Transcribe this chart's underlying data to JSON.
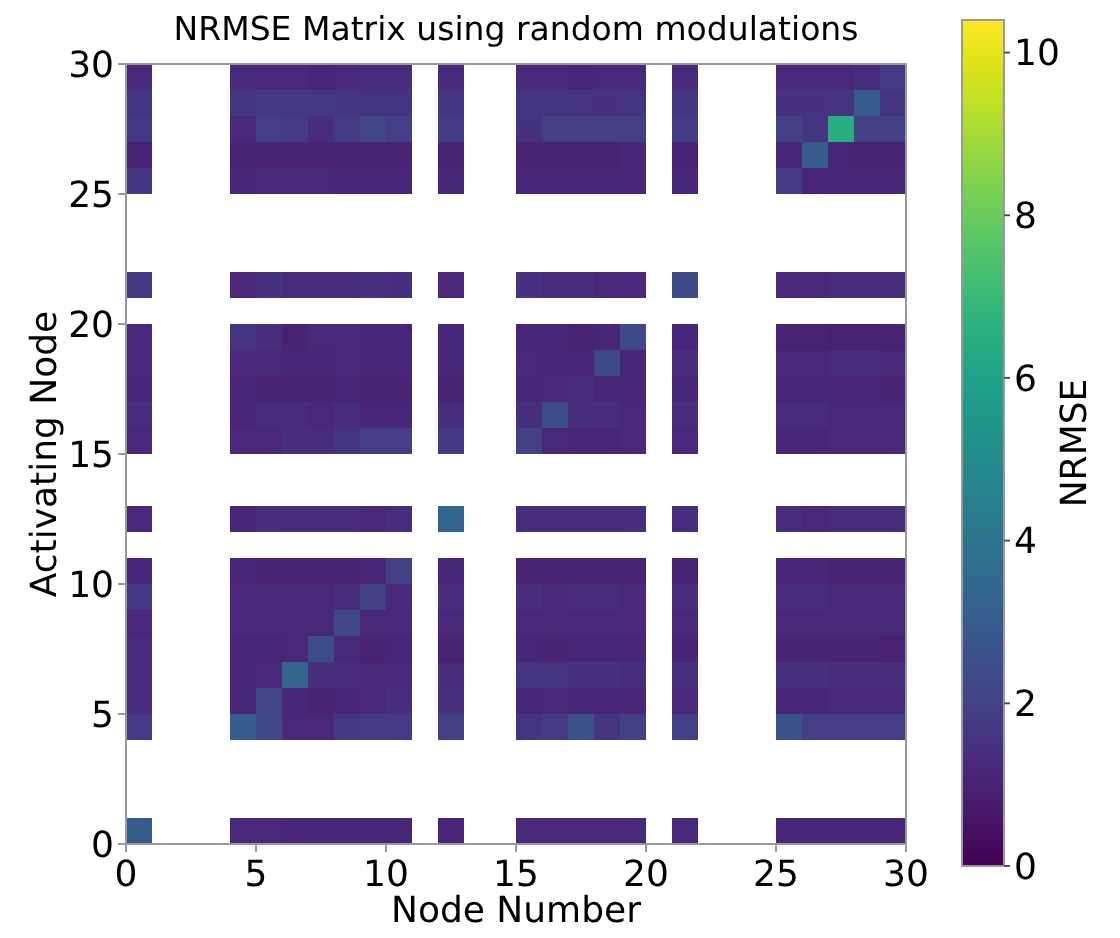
{
  "chart_data": {
    "type": "scatter",
    "marker": "square",
    "title": "NRMSE Matrix using random modulations",
    "xlabel": "Node Number",
    "ylabel": "Activating Node",
    "clabel": "NRMSE",
    "xlim": [
      0,
      30
    ],
    "xticks": [
      0,
      5,
      10,
      15,
      20,
      25,
      30
    ],
    "ylim": [
      0,
      30
    ],
    "yticks": [
      0,
      5,
      10,
      15,
      20,
      25,
      30
    ],
    "clim": [
      0,
      10.4
    ],
    "cticks": [
      0,
      2,
      4,
      6,
      8,
      10
    ],
    "x": [
      0.5,
      4.5,
      5.5,
      6.5,
      7.5,
      8.5,
      9.5,
      10.5,
      12.5,
      15.5,
      16.5,
      17.5,
      18.5,
      19.5,
      21.5,
      25.5,
      26.5,
      27.5,
      28.5,
      29.5,
      0.5,
      4.5,
      5.5,
      6.5,
      7.5,
      8.5,
      9.5,
      10.5,
      12.5,
      15.5,
      16.5,
      17.5,
      18.5,
      19.5,
      21.5,
      25.5,
      26.5,
      27.5,
      28.5,
      29.5,
      0.5,
      4.5,
      5.5,
      6.5,
      7.5,
      8.5,
      9.5,
      10.5,
      12.5,
      15.5,
      16.5,
      17.5,
      18.5,
      19.5,
      21.5,
      25.5,
      26.5,
      27.5,
      28.5,
      29.5,
      0.5,
      4.5,
      5.5,
      6.5,
      7.5,
      8.5,
      9.5,
      10.5,
      12.5,
      15.5,
      16.5,
      17.5,
      18.5,
      19.5,
      21.5,
      25.5,
      26.5,
      27.5,
      28.5,
      29.5,
      0.5,
      4.5,
      5.5,
      6.5,
      7.5,
      8.5,
      9.5,
      10.5,
      12.5,
      15.5,
      16.5,
      17.5,
      18.5,
      19.5,
      21.5,
      25.5,
      26.5,
      27.5,
      28.5,
      29.5,
      0.5,
      4.5,
      5.5,
      6.5,
      7.5,
      8.5,
      9.5,
      10.5,
      12.5,
      15.5,
      16.5,
      17.5,
      18.5,
      19.5,
      21.5,
      25.5,
      26.5,
      27.5,
      28.5,
      29.5,
      0.5,
      4.5,
      5.5,
      6.5,
      7.5,
      8.5,
      9.5,
      10.5,
      12.5,
      15.5,
      16.5,
      17.5,
      18.5,
      19.5,
      21.5,
      25.5,
      26.5,
      27.5,
      28.5,
      29.5,
      0.5,
      4.5,
      5.5,
      6.5,
      7.5,
      8.5,
      9.5,
      10.5,
      12.5,
      15.5,
      16.5,
      17.5,
      18.5,
      19.5,
      21.5,
      25.5,
      26.5,
      27.5,
      28.5,
      29.5,
      0.5,
      4.5,
      5.5,
      6.5,
      7.5,
      8.5,
      9.5,
      10.5,
      12.5,
      15.5,
      16.5,
      17.5,
      18.5,
      19.5,
      21.5,
      25.5,
      26.5,
      27.5,
      28.5,
      29.5,
      0.5,
      4.5,
      5.5,
      6.5,
      7.5,
      8.5,
      9.5,
      10.5,
      12.5,
      15.5,
      16.5,
      17.5,
      18.5,
      19.5,
      21.5,
      25.5,
      26.5,
      27.5,
      28.5,
      29.5,
      0.5,
      4.5,
      5.5,
      6.5,
      7.5,
      8.5,
      9.5,
      10.5,
      12.5,
      15.5,
      16.5,
      17.5,
      18.5,
      19.5,
      21.5,
      25.5,
      26.5,
      27.5,
      28.5,
      29.5,
      0.5,
      4.5,
      5.5,
      6.5,
      7.5,
      8.5,
      9.5,
      10.5,
      12.5,
      15.5,
      16.5,
      17.5,
      18.5,
      19.5,
      21.5,
      25.5,
      26.5,
      27.5,
      28.5,
      29.5,
      0.5,
      4.5,
      5.5,
      6.5,
      7.5,
      8.5,
      9.5,
      10.5,
      12.5,
      15.5,
      16.5,
      17.5,
      18.5,
      19.5,
      21.5,
      25.5,
      26.5,
      27.5,
      28.5,
      29.5,
      0.5,
      4.5,
      5.5,
      6.5,
      7.5,
      8.5,
      9.5,
      10.5,
      12.5,
      15.5,
      16.5,
      17.5,
      18.5,
      19.5,
      21.5,
      25.5,
      26.5,
      27.5,
      28.5,
      29.5,
      0.5,
      4.5,
      5.5,
      6.5,
      7.5,
      8.5,
      9.5,
      10.5,
      12.5,
      15.5,
      16.5,
      17.5,
      18.5,
      19.5,
      21.5,
      25.5,
      26.5,
      27.5,
      28.5,
      29.5,
      0.5,
      4.5,
      5.5,
      6.5,
      7.5,
      8.5,
      9.5,
      10.5,
      12.5,
      15.5,
      16.5,
      17.5,
      18.5,
      19.5,
      21.5,
      25.5,
      26.5,
      27.5,
      28.5,
      29.5,
      0.5,
      4.5,
      5.5,
      6.5,
      7.5,
      8.5,
      9.5,
      10.5,
      12.5,
      15.5,
      16.5,
      17.5,
      18.5,
      19.5,
      21.5,
      25.5,
      26.5,
      27.5,
      28.5,
      29.5,
      0.5,
      4.5,
      5.5,
      6.5,
      7.5,
      8.5,
      9.5,
      10.5,
      12.5,
      15.5,
      16.5,
      17.5,
      18.5,
      19.5,
      21.5,
      25.5,
      26.5,
      27.5,
      28.5,
      29.5,
      0.5,
      4.5,
      5.5,
      6.5,
      7.5,
      8.5,
      9.5,
      10.5,
      12.5,
      15.5,
      16.5,
      17.5,
      18.5,
      19.5,
      21.5,
      25.5,
      26.5,
      27.5,
      28.5,
      29.5,
      0.5,
      4.5,
      5.5,
      6.5,
      7.5,
      8.5,
      9.5,
      10.5,
      12.5,
      15.5,
      16.5,
      17.5,
      18.5,
      19.5,
      21.5,
      25.5,
      26.5,
      27.5,
      28.5,
      29.5
    ],
    "values": [
      29.5,
      29.5,
      29.5,
      29.5,
      29.5,
      29.5,
      29.5,
      29.5,
      29.5,
      29.5,
      29.5,
      29.5,
      29.5,
      29.5,
      29.5,
      29.5,
      29.5,
      29.5,
      29.5,
      29.5,
      28.5,
      28.5,
      28.5,
      28.5,
      28.5,
      28.5,
      28.5,
      28.5,
      28.5,
      28.5,
      28.5,
      28.5,
      28.5,
      28.5,
      28.5,
      28.5,
      28.5,
      28.5,
      28.5,
      28.5,
      27.5,
      27.5,
      27.5,
      27.5,
      27.5,
      27.5,
      27.5,
      27.5,
      27.5,
      27.5,
      27.5,
      27.5,
      27.5,
      27.5,
      27.5,
      27.5,
      27.5,
      27.5,
      27.5,
      27.5,
      26.5,
      26.5,
      26.5,
      26.5,
      26.5,
      26.5,
      26.5,
      26.5,
      26.5,
      26.5,
      26.5,
      26.5,
      26.5,
      26.5,
      26.5,
      26.5,
      26.5,
      26.5,
      26.5,
      26.5,
      25.5,
      25.5,
      25.5,
      25.5,
      25.5,
      25.5,
      25.5,
      25.5,
      25.5,
      25.5,
      25.5,
      25.5,
      25.5,
      25.5,
      25.5,
      25.5,
      25.5,
      25.5,
      25.5,
      25.5,
      21.5,
      21.5,
      21.5,
      21.5,
      21.5,
      21.5,
      21.5,
      21.5,
      21.5,
      21.5,
      21.5,
      21.5,
      21.5,
      21.5,
      21.5,
      21.5,
      21.5,
      21.5,
      21.5,
      21.5,
      19.5,
      19.5,
      19.5,
      19.5,
      19.5,
      19.5,
      19.5,
      19.5,
      19.5,
      19.5,
      19.5,
      19.5,
      19.5,
      19.5,
      19.5,
      19.5,
      19.5,
      19.5,
      19.5,
      19.5,
      18.5,
      18.5,
      18.5,
      18.5,
      18.5,
      18.5,
      18.5,
      18.5,
      18.5,
      18.5,
      18.5,
      18.5,
      18.5,
      18.5,
      18.5,
      18.5,
      18.5,
      18.5,
      18.5,
      18.5,
      17.5,
      17.5,
      17.5,
      17.5,
      17.5,
      17.5,
      17.5,
      17.5,
      17.5,
      17.5,
      17.5,
      17.5,
      17.5,
      17.5,
      17.5,
      17.5,
      17.5,
      17.5,
      17.5,
      17.5,
      16.5,
      16.5,
      16.5,
      16.5,
      16.5,
      16.5,
      16.5,
      16.5,
      16.5,
      16.5,
      16.5,
      16.5,
      16.5,
      16.5,
      16.5,
      16.5,
      16.5,
      16.5,
      16.5,
      16.5,
      15.5,
      15.5,
      15.5,
      15.5,
      15.5,
      15.5,
      15.5,
      15.5,
      15.5,
      15.5,
      15.5,
      15.5,
      15.5,
      15.5,
      15.5,
      15.5,
      15.5,
      15.5,
      15.5,
      15.5,
      12.5,
      12.5,
      12.5,
      12.5,
      12.5,
      12.5,
      12.5,
      12.5,
      12.5,
      12.5,
      12.5,
      12.5,
      12.5,
      12.5,
      12.5,
      12.5,
      12.5,
      12.5,
      12.5,
      12.5,
      10.5,
      10.5,
      10.5,
      10.5,
      10.5,
      10.5,
      10.5,
      10.5,
      10.5,
      10.5,
      10.5,
      10.5,
      10.5,
      10.5,
      10.5,
      10.5,
      10.5,
      10.5,
      10.5,
      10.5,
      9.5,
      9.5,
      9.5,
      9.5,
      9.5,
      9.5,
      9.5,
      9.5,
      9.5,
      9.5,
      9.5,
      9.5,
      9.5,
      9.5,
      9.5,
      9.5,
      9.5,
      9.5,
      9.5,
      9.5,
      8.5,
      8.5,
      8.5,
      8.5,
      8.5,
      8.5,
      8.5,
      8.5,
      8.5,
      8.5,
      8.5,
      8.5,
      8.5,
      8.5,
      8.5,
      8.5,
      8.5,
      8.5,
      8.5,
      8.5,
      7.5,
      7.5,
      7.5,
      7.5,
      7.5,
      7.5,
      7.5,
      7.5,
      7.5,
      7.5,
      7.5,
      7.5,
      7.5,
      7.5,
      7.5,
      7.5,
      7.5,
      7.5,
      7.5,
      7.5,
      6.5,
      6.5,
      6.5,
      6.5,
      6.5,
      6.5,
      6.5,
      6.5,
      6.5,
      6.5,
      6.5,
      6.5,
      6.5,
      6.5,
      6.5,
      6.5,
      6.5,
      6.5,
      6.5,
      6.5,
      5.5,
      5.5,
      5.5,
      5.5,
      5.5,
      5.5,
      5.5,
      5.5,
      5.5,
      5.5,
      5.5,
      5.5,
      5.5,
      5.5,
      5.5,
      5.5,
      5.5,
      5.5,
      5.5,
      5.5,
      4.5,
      4.5,
      4.5,
      4.5,
      4.5,
      4.5,
      4.5,
      4.5,
      4.5,
      4.5,
      4.5,
      4.5,
      4.5,
      4.5,
      4.5,
      4.5,
      4.5,
      4.5,
      4.5,
      4.5,
      0.5,
      0.5,
      0.5,
      0.5,
      0.5,
      0.5,
      0.5,
      0.5,
      0.5,
      0.5,
      0.5,
      0.5,
      0.5,
      0.5,
      0.5,
      0.5,
      0.5,
      0.5,
      0.5,
      0.5
    ],
    "cvalues": [
      1.2,
      1.2,
      1.2,
      1.2,
      1.1,
      1.2,
      1.3,
      1.3,
      1.2,
      1.2,
      1.2,
      1.1,
      1.2,
      1.2,
      1.2,
      1.2,
      1.2,
      1.2,
      1.3,
      1.8,
      1.6,
      1.6,
      1.7,
      1.7,
      1.7,
      1.6,
      1.6,
      1.6,
      1.6,
      1.6,
      1.6,
      1.6,
      1.5,
      1.6,
      1.6,
      1.5,
      1.5,
      1.6,
      3.0,
      1.6,
      1.7,
      1.2,
      1.9,
      1.8,
      1.3,
      1.8,
      2.2,
      1.9,
      1.8,
      1.5,
      2.0,
      2.0,
      2.0,
      2.0,
      1.8,
      2.0,
      1.6,
      6.5,
      2.0,
      2.0,
      1.0,
      1.0,
      1.0,
      1.0,
      1.0,
      1.0,
      1.0,
      1.0,
      1.0,
      1.0,
      1.0,
      1.0,
      1.0,
      1.1,
      1.0,
      1.1,
      3.0,
      1.1,
      1.0,
      1.0,
      1.6,
      1.1,
      1.2,
      1.2,
      1.2,
      1.1,
      1.1,
      1.1,
      1.1,
      1.1,
      1.1,
      1.1,
      1.1,
      1.1,
      1.1,
      1.8,
      1.1,
      1.1,
      1.1,
      1.1,
      1.7,
      1.2,
      1.5,
      1.3,
      1.3,
      1.4,
      1.5,
      1.4,
      1.2,
      1.5,
      1.3,
      1.3,
      1.2,
      1.2,
      2.3,
      1.2,
      1.2,
      1.3,
      1.3,
      1.3,
      1.2,
      1.6,
      1.3,
      1.0,
      1.2,
      1.2,
      1.1,
      1.1,
      1.1,
      1.1,
      1.1,
      1.0,
      1.1,
      2.3,
      1.1,
      1.0,
      1.0,
      0.9,
      0.9,
      1.0,
      1.2,
      1.2,
      1.2,
      1.1,
      1.1,
      1.2,
      1.1,
      1.1,
      1.1,
      1.2,
      1.1,
      1.1,
      2.3,
      1.1,
      1.3,
      1.2,
      1.2,
      1.3,
      1.3,
      1.2,
      1.1,
      1.1,
      1.0,
      1.0,
      1.0,
      1.1,
      1.0,
      1.0,
      1.0,
      1.1,
      1.2,
      1.4,
      1.1,
      1.1,
      1.1,
      1.1,
      1.1,
      1.1,
      1.1,
      1.0,
      1.4,
      1.1,
      1.3,
      1.3,
      1.2,
      1.3,
      1.1,
      1.1,
      1.3,
      1.4,
      2.4,
      1.4,
      1.4,
      1.2,
      1.4,
      1.3,
      1.3,
      1.2,
      1.2,
      1.2,
      1.2,
      1.2,
      1.2,
      1.4,
      1.4,
      1.6,
      1.9,
      1.9,
      1.7,
      2.0,
      1.2,
      1.1,
      1.1,
      1.2,
      1.2,
      1.1,
      1.1,
      1.2,
      1.2,
      1.2,
      1.2,
      1.1,
      1.4,
      1.3,
      1.3,
      1.3,
      1.2,
      1.3,
      3.3,
      1.3,
      1.3,
      1.3,
      1.3,
      1.4,
      1.3,
      1.3,
      1.2,
      1.3,
      1.3,
      1.3,
      1.1,
      1.1,
      1.0,
      1.0,
      1.0,
      1.0,
      1.1,
      2.0,
      1.1,
      1.0,
      1.0,
      1.0,
      1.0,
      1.0,
      1.0,
      1.1,
      1.1,
      1.0,
      1.0,
      1.0,
      1.7,
      1.2,
      1.2,
      1.2,
      1.2,
      1.3,
      2.0,
      1.2,
      1.3,
      1.4,
      1.2,
      1.3,
      1.3,
      1.2,
      1.4,
      1.3,
      1.3,
      1.2,
      1.2,
      1.2,
      1.2,
      1.2,
      1.2,
      1.2,
      1.2,
      2.2,
      1.2,
      1.2,
      1.2,
      1.2,
      1.2,
      1.2,
      1.2,
      1.2,
      1.2,
      1.2,
      1.2,
      1.2,
      1.2,
      1.2,
      1.3,
      1.1,
      1.1,
      1.2,
      2.4,
      1.2,
      1.0,
      1.1,
      1.0,
      1.1,
      1.0,
      1.1,
      1.1,
      1.1,
      1.0,
      1.0,
      1.0,
      1.0,
      1.0,
      0.9,
      1.3,
      1.1,
      1.2,
      3.3,
      1.3,
      1.3,
      1.2,
      1.2,
      1.3,
      1.6,
      1.6,
      1.5,
      1.5,
      1.4,
      1.5,
      1.5,
      1.5,
      1.4,
      1.4,
      1.4,
      1.3,
      1.1,
      2.2,
      1.1,
      1.0,
      1.1,
      1.2,
      1.3,
      1.5,
      1.1,
      1.2,
      1.1,
      1.1,
      1.1,
      1.2,
      1.1,
      1.1,
      1.2,
      1.2,
      1.2,
      1.8,
      3.0,
      2.2,
      1.2,
      1.2,
      1.7,
      1.8,
      1.8,
      2.0,
      1.6,
      1.8,
      2.6,
      1.6,
      2.0,
      2.0,
      2.6,
      1.9,
      1.9,
      1.9,
      1.9,
      3.0,
      1.2,
      1.2,
      1.1,
      1.1,
      1.1,
      1.1,
      1.1,
      1.1,
      1.2,
      1.2,
      1.2,
      1.2,
      1.2,
      1.2,
      1.1,
      1.1,
      1.1,
      1.1,
      1.1
    ]
  }
}
